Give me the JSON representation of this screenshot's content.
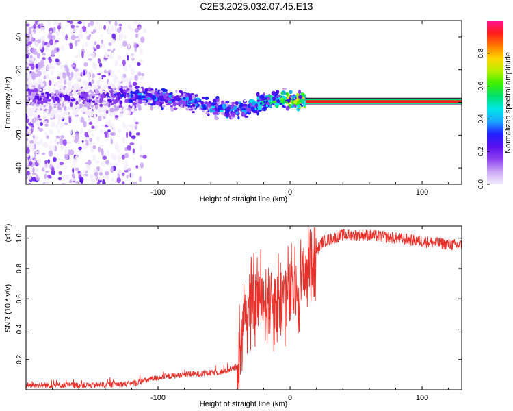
{
  "figure": {
    "title": "C2E3.2025.032.07.45.E13"
  },
  "chart_data": [
    {
      "type": "heatmap",
      "name": "spectrogram",
      "title": "C2E3.2025.032.07.45.E13",
      "xlabel": "Height of straight line (km)",
      "ylabel": "Frequency (Hz)",
      "xlim": [
        -200,
        130
      ],
      "ylim": [
        -50,
        50
      ],
      "xticks": [
        -100,
        0,
        100
      ],
      "xtick_labels": [
        "-100",
        "0",
        "100"
      ],
      "yticks": [
        -40,
        -20,
        0,
        20,
        40
      ],
      "ytick_labels": [
        "-40",
        "-20",
        "0",
        "20",
        "40"
      ],
      "colorbar": {
        "label": "Normalized spectral amplitude",
        "range": [
          0,
          1
        ],
        "ticks": [
          0.0,
          0.2,
          0.4,
          0.6,
          0.8
        ],
        "tick_labels": [
          "0.0",
          "0.2",
          "0.4",
          "0.6",
          "0.8"
        ],
        "colors": [
          "#f4eefc",
          "#c9a6f5",
          "#8d3ff0",
          "#5a10ee",
          "#2020ff",
          "#1aa7ff",
          "#00e6e6",
          "#00e070",
          "#3df000",
          "#b8f000",
          "#ffd400",
          "#ff7a00",
          "#ff1a1a",
          "#ff1493"
        ]
      },
      "ridge": [
        {
          "x": -140,
          "f": 3,
          "a": 0.3
        },
        {
          "x": -120,
          "f": 4,
          "a": 0.4
        },
        {
          "x": -100,
          "f": 3,
          "a": 0.45
        },
        {
          "x": -85,
          "f": 2,
          "a": 0.45
        },
        {
          "x": -70,
          "f": 0,
          "a": 0.45
        },
        {
          "x": -55,
          "f": -3,
          "a": 0.5
        },
        {
          "x": -45,
          "f": -5,
          "a": 0.5
        },
        {
          "x": -35,
          "f": -4,
          "a": 0.5
        },
        {
          "x": -25,
          "f": -1,
          "a": 0.55
        },
        {
          "x": -15,
          "f": 1,
          "a": 0.6
        },
        {
          "x": -5,
          "f": 2,
          "a": 0.7
        },
        {
          "x": 10,
          "f": 1,
          "a": 0.85
        },
        {
          "x": 130,
          "f": 0.5,
          "a": 0.95
        }
      ],
      "tone": {
        "x_start": 12,
        "x_end": 130,
        "f": 0.5
      }
    },
    {
      "type": "line",
      "name": "snr",
      "xlabel": "Height of straight line (km)",
      "ylabel": "SNR (10 * v/v)",
      "y_multiplier": "(x10",
      "y_multiplier_exp": "4",
      "y_multiplier_close": ")",
      "xlim": [
        -200,
        130
      ],
      "ylim": [
        0,
        1.08
      ],
      "xticks": [
        -100,
        0,
        100
      ],
      "xtick_labels": [
        "-100",
        "0",
        "100"
      ],
      "yticks": [
        0.2,
        0.4,
        0.6,
        0.8,
        1.0
      ],
      "ytick_labels": [
        "0.2",
        "0.4",
        "0.6",
        "0.8",
        "1.0"
      ],
      "color": "#e8312a",
      "envelope": [
        {
          "x": -200,
          "y": 0.03
        },
        {
          "x": -150,
          "y": 0.03
        },
        {
          "x": -120,
          "y": 0.04
        },
        {
          "x": -100,
          "y": 0.08
        },
        {
          "x": -80,
          "y": 0.1
        },
        {
          "x": -60,
          "y": 0.11
        },
        {
          "x": -50,
          "y": 0.12
        },
        {
          "x": -40,
          "y": 0.15
        },
        {
          "x": -35,
          "y": 0.5
        },
        {
          "x": -25,
          "y": 0.6
        },
        {
          "x": -15,
          "y": 0.6
        },
        {
          "x": -5,
          "y": 0.62
        },
        {
          "x": 5,
          "y": 0.65
        },
        {
          "x": 15,
          "y": 0.85
        },
        {
          "x": 25,
          "y": 0.98
        },
        {
          "x": 40,
          "y": 1.02
        },
        {
          "x": 60,
          "y": 1.02
        },
        {
          "x": 80,
          "y": 1.0
        },
        {
          "x": 100,
          "y": 0.98
        },
        {
          "x": 120,
          "y": 0.96
        },
        {
          "x": 130,
          "y": 0.95
        }
      ]
    }
  ]
}
